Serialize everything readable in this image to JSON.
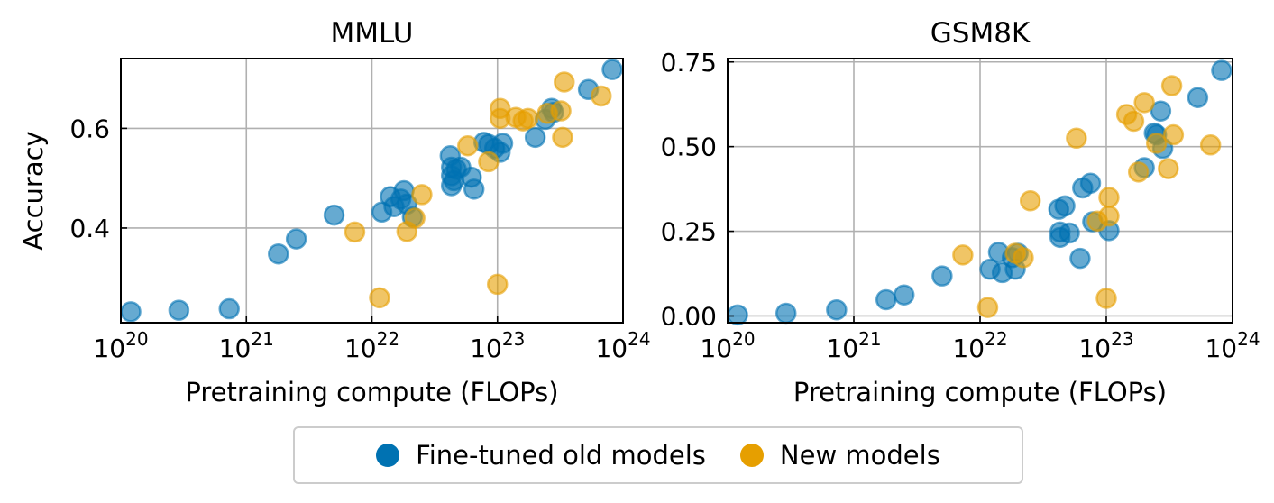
{
  "legend": {
    "series": [
      {
        "name": "Fine-tuned old models",
        "color": "#0072B2"
      },
      {
        "name": "New models",
        "color": "#E69F00"
      }
    ]
  },
  "chart_data": [
    {
      "type": "scatter",
      "title": "MMLU",
      "xlabel": "Pretraining compute (FLOPs)",
      "ylabel": "Accuracy",
      "xscale": "log",
      "xlim": [
        1e+20,
        1e+24
      ],
      "ylim": [
        0.21,
        0.74
      ],
      "xticks": [
        1e+20,
        1e+21,
        1e+22,
        1e+23,
        1e+24
      ],
      "yticks": [
        0.4,
        0.6
      ],
      "ytick_labels": [
        "0.4",
        "0.6"
      ],
      "grid": true,
      "series": [
        {
          "name": "Fine-tuned old models",
          "color": "#0072B2",
          "points": [
            [
              1.2e+20,
              0.232
            ],
            [
              2.9e+20,
              0.235
            ],
            [
              7.3e+20,
              0.238
            ],
            [
              1.8e+21,
              0.348
            ],
            [
              2.5e+21,
              0.378
            ],
            [
              5e+21,
              0.426
            ],
            [
              1.2e+22,
              0.432
            ],
            [
              1.4e+22,
              0.463
            ],
            [
              1.5e+22,
              0.443
            ],
            [
              1.7e+22,
              0.458
            ],
            [
              1.8e+22,
              0.475
            ],
            [
              1.9e+22,
              0.448
            ],
            [
              2.1e+22,
              0.422
            ],
            [
              4.2e+22,
              0.545
            ],
            [
              4.3e+22,
              0.522
            ],
            [
              4.3e+22,
              0.505
            ],
            [
              4.3e+22,
              0.485
            ],
            [
              4.5e+22,
              0.495
            ],
            [
              4.7e+22,
              0.518
            ],
            [
              5.1e+22,
              0.522
            ],
            [
              6.2e+22,
              0.502
            ],
            [
              6.5e+22,
              0.478
            ],
            [
              7.8e+22,
              0.572
            ],
            [
              8.5e+22,
              0.568
            ],
            [
              9.5e+22,
              0.56
            ],
            [
              1.05e+23,
              0.552
            ],
            [
              1.1e+23,
              0.57
            ],
            [
              2e+23,
              0.582
            ],
            [
              2.4e+23,
              0.618
            ],
            [
              2.7e+23,
              0.64
            ],
            [
              2.8e+23,
              0.632
            ],
            [
              5.3e+23,
              0.678
            ],
            [
              8.2e+23,
              0.718
            ]
          ]
        },
        {
          "name": "New models",
          "color": "#E69F00",
          "points": [
            [
              7.3e+21,
              0.392
            ],
            [
              1.15e+22,
              0.26
            ],
            [
              1.9e+22,
              0.393
            ],
            [
              2.2e+22,
              0.42
            ],
            [
              2.5e+22,
              0.467
            ],
            [
              5.8e+22,
              0.565
            ],
            [
              8.5e+22,
              0.533
            ],
            [
              1e+23,
              0.287
            ],
            [
              1.05e+23,
              0.64
            ],
            [
              1.05e+23,
              0.62
            ],
            [
              1.4e+23,
              0.622
            ],
            [
              1.6e+23,
              0.615
            ],
            [
              1.75e+23,
              0.62
            ],
            [
              2.5e+23,
              0.63
            ],
            [
              3.2e+23,
              0.635
            ],
            [
              3.3e+23,
              0.582
            ],
            [
              3.4e+23,
              0.693
            ],
            [
              6.7e+23,
              0.665
            ]
          ]
        }
      ]
    },
    {
      "type": "scatter",
      "title": "GSM8K",
      "xlabel": "Pretraining compute (FLOPs)",
      "ylabel": "",
      "xscale": "log",
      "xlim": [
        1e+20,
        1e+24
      ],
      "ylim": [
        -0.02,
        0.76
      ],
      "xticks": [
        1e+20,
        1e+21,
        1e+22,
        1e+23,
        1e+24
      ],
      "yticks": [
        0,
        0.25,
        0.5,
        0.75
      ],
      "ytick_labels": [
        "0.00",
        "0.25",
        "0.50",
        "0.75"
      ],
      "grid": true,
      "series": [
        {
          "name": "Fine-tuned old models",
          "color": "#0072B2",
          "points": [
            [
              1.2e+20,
              0.003
            ],
            [
              2.9e+20,
              0.008
            ],
            [
              7.3e+20,
              0.018
            ],
            [
              1.8e+21,
              0.048
            ],
            [
              2.5e+21,
              0.062
            ],
            [
              5e+21,
              0.118
            ],
            [
              1.2e+22,
              0.138
            ],
            [
              1.4e+22,
              0.188
            ],
            [
              1.5e+22,
              0.128
            ],
            [
              1.8e+22,
              0.172
            ],
            [
              1.9e+22,
              0.138
            ],
            [
              2e+22,
              0.185
            ],
            [
              4.2e+22,
              0.315
            ],
            [
              4.3e+22,
              0.248
            ],
            [
              4.3e+22,
              0.232
            ],
            [
              4.7e+22,
              0.325
            ],
            [
              5.1e+22,
              0.245
            ],
            [
              6.2e+22,
              0.17
            ],
            [
              6.5e+22,
              0.378
            ],
            [
              7.5e+22,
              0.392
            ],
            [
              7.8e+22,
              0.278
            ],
            [
              1.05e+23,
              0.252
            ],
            [
              2e+23,
              0.438
            ],
            [
              2.4e+23,
              0.54
            ],
            [
              2.5e+23,
              0.535
            ],
            [
              2.7e+23,
              0.605
            ],
            [
              2.8e+23,
              0.495
            ],
            [
              5.3e+23,
              0.645
            ],
            [
              8.2e+23,
              0.725
            ]
          ]
        },
        {
          "name": "New models",
          "color": "#E69F00",
          "points": [
            [
              7.3e+21,
              0.18
            ],
            [
              1.15e+22,
              0.025
            ],
            [
              1.9e+22,
              0.185
            ],
            [
              2.2e+22,
              0.172
            ],
            [
              2.5e+22,
              0.34
            ],
            [
              5.8e+22,
              0.525
            ],
            [
              8.5e+22,
              0.28
            ],
            [
              1e+23,
              0.052
            ],
            [
              1.05e+23,
              0.35
            ],
            [
              1.05e+23,
              0.295
            ],
            [
              1.45e+23,
              0.595
            ],
            [
              1.65e+23,
              0.575
            ],
            [
              1.8e+23,
              0.425
            ],
            [
              2e+23,
              0.63
            ],
            [
              2.5e+23,
              0.51
            ],
            [
              3.1e+23,
              0.435
            ],
            [
              3.3e+23,
              0.68
            ],
            [
              3.4e+23,
              0.535
            ],
            [
              6.7e+23,
              0.505
            ]
          ]
        }
      ]
    }
  ]
}
